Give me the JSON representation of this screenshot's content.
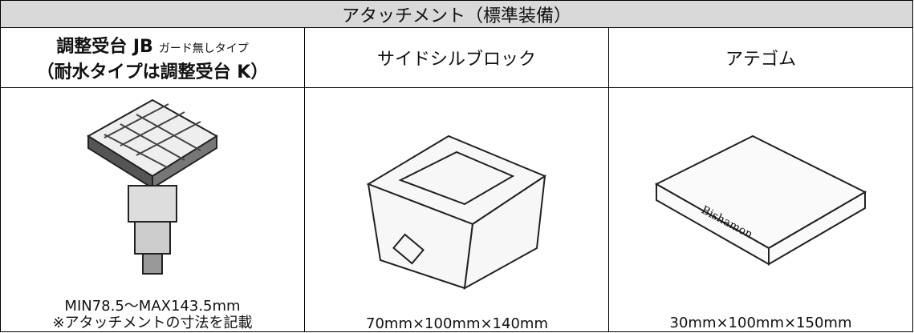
{
  "table": {
    "title": "アタッチメント（標準装備）",
    "columns": [
      {
        "name": "調整受台 JB",
        "note": "ガード無しタイプ",
        "subname": "（耐水タイプは調整受台 K）",
        "caption": [
          "MIN78.5～MAX143.5mm",
          "※アタッチメントの寸法を記載"
        ]
      },
      {
        "name": "サイドシルブロック",
        "caption": [
          "70mm×100mm×140mm"
        ]
      },
      {
        "name": "アテゴム",
        "image_text": "Bishamon",
        "caption": [
          "30mm×100mm×150mm"
        ]
      }
    ]
  }
}
